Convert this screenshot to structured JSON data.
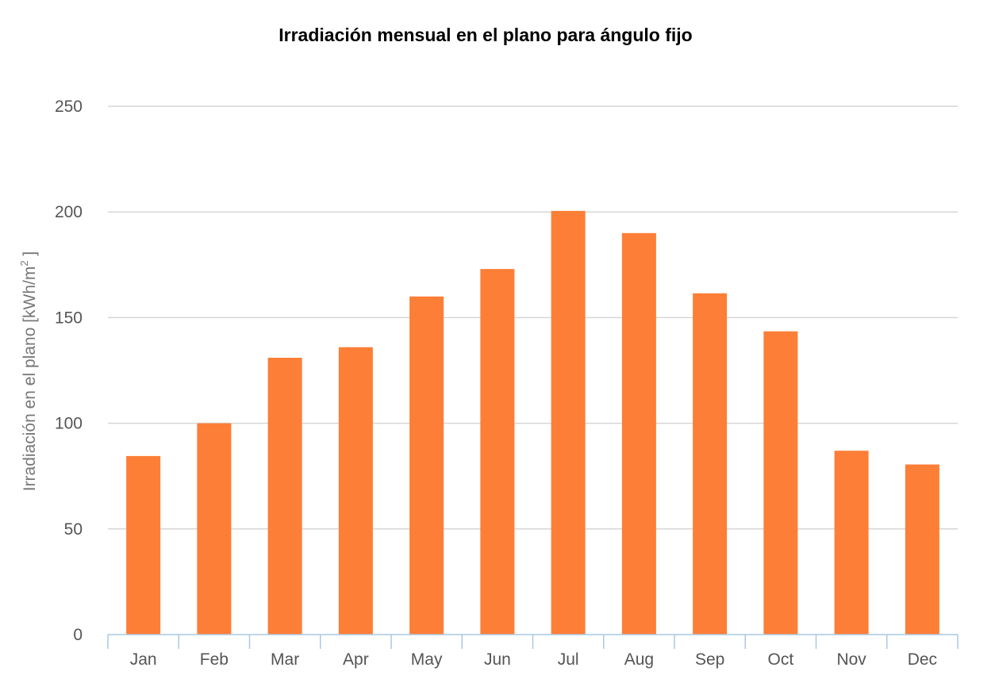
{
  "chart_data": {
    "type": "bar",
    "title": "Irradiación mensual en el plano para ángulo fijo",
    "ylabel": "Irradiación en el plano [kWh/m",
    "ylabel_sup": "2",
    "ylabel_end": " ]",
    "xlabel": "",
    "categories": [
      "Jan",
      "Feb",
      "Mar",
      "Apr",
      "May",
      "Jun",
      "Jul",
      "Aug",
      "Sep",
      "Oct",
      "Nov",
      "Dec"
    ],
    "values": [
      84.5,
      100,
      131,
      136,
      160,
      173,
      200.5,
      190,
      161.5,
      143.5,
      87,
      80.5
    ],
    "ylim": [
      0,
      250
    ],
    "yticks": [
      0,
      50,
      100,
      150,
      200,
      250
    ],
    "grid": true,
    "bar_color": "#fd7e36",
    "legend": "none"
  }
}
